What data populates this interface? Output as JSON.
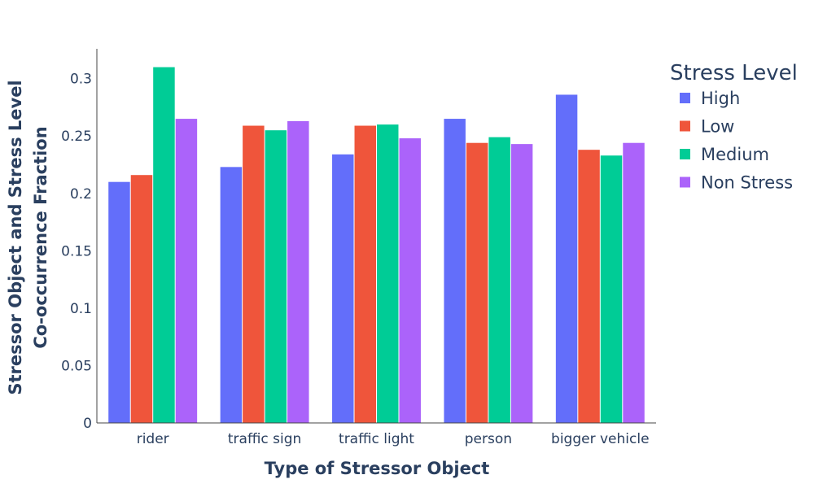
{
  "chart_data": {
    "type": "bar",
    "categories": [
      "rider",
      "traffic sign",
      "traffic light",
      "person",
      "bigger vehicle"
    ],
    "series": [
      {
        "name": "High",
        "color": "#636efa",
        "values": [
          0.21,
          0.223,
          0.234,
          0.265,
          0.286
        ]
      },
      {
        "name": "Low",
        "color": "#ef553b",
        "values": [
          0.216,
          0.259,
          0.259,
          0.244,
          0.238
        ]
      },
      {
        "name": "Medium",
        "color": "#00cc96",
        "values": [
          0.31,
          0.255,
          0.26,
          0.249,
          0.233
        ]
      },
      {
        "name": "Non Stress",
        "color": "#ab63fa",
        "values": [
          0.265,
          0.263,
          0.248,
          0.243,
          0.244
        ]
      }
    ],
    "xlabel": "Type of Stressor Object",
    "ylabel_lines": [
      "Stressor Object and Stress Level",
      "Co-occurrence Fraction"
    ],
    "ylim": [
      0,
      0.326
    ],
    "yticks": [
      0,
      0.05,
      0.1,
      0.15,
      0.2,
      0.25,
      0.3
    ],
    "ytick_labels": [
      "0",
      "0.05",
      "0.1",
      "0.15",
      "0.2",
      "0.25",
      "0.3"
    ],
    "legend_title": "Stress Level",
    "legend_position": "top-right",
    "grid": false
  }
}
